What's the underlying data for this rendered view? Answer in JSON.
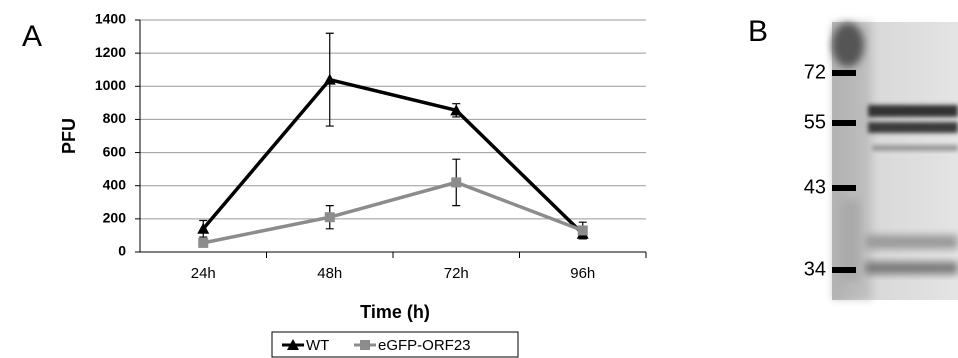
{
  "panel_labels": [
    "A",
    "B"
  ],
  "chart_data": {
    "type": "line",
    "x_label": "Time (h)",
    "y_label": "PFU",
    "categories": [
      "24h",
      "48h",
      "72h",
      "96h"
    ],
    "series": [
      {
        "name": "WT",
        "color": "#000000",
        "marker": "triangle",
        "values": [
          140,
          1040,
          855,
          110
        ],
        "errors": [
          50,
          280,
          40,
          30
        ]
      },
      {
        "name": "eGFP-ORF23",
        "color": "#8c8c8c",
        "marker": "square",
        "values": [
          55,
          210,
          420,
          130
        ],
        "errors": [
          10,
          70,
          140,
          50
        ]
      }
    ],
    "ylim": [
      0,
      1400
    ],
    "yticks": [
      0,
      200,
      400,
      600,
      800,
      1000,
      1200,
      1400
    ],
    "grid": true,
    "legend": "bottom"
  },
  "blot": {
    "markers": [
      "72",
      "55",
      "43",
      "34"
    ]
  }
}
